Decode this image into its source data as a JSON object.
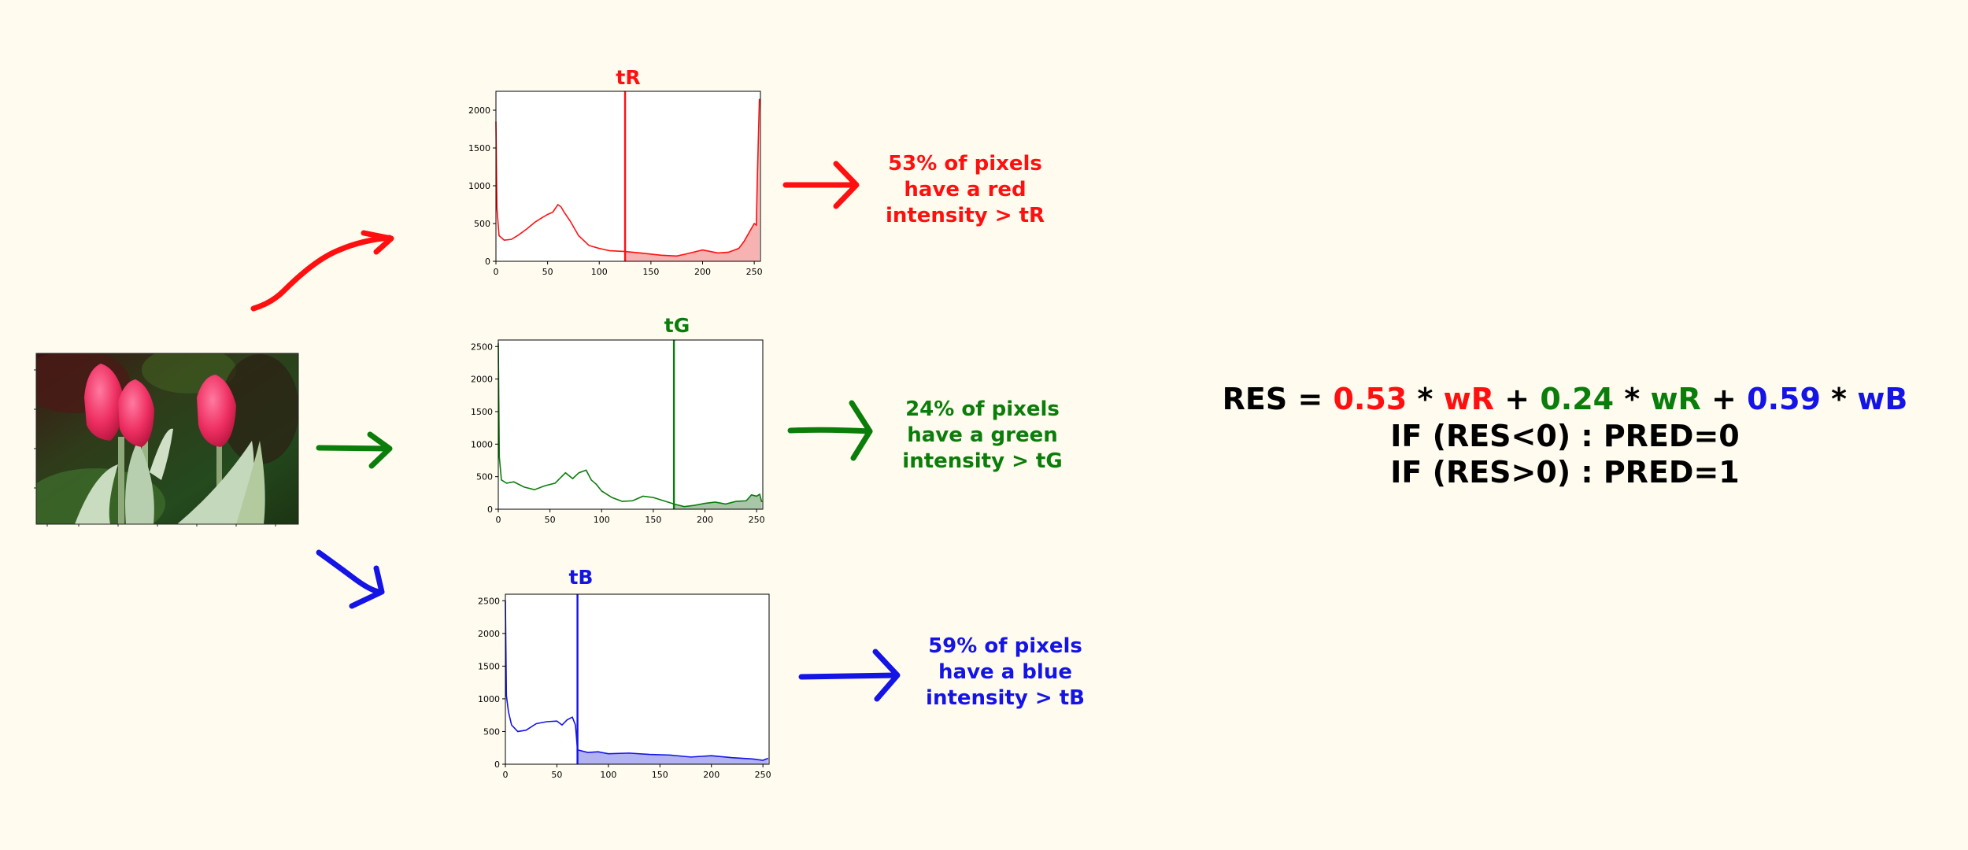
{
  "colors": {
    "background": "#fffbee",
    "red": "#ff1010",
    "green": "#0a7d0a",
    "blue": "#1414e6",
    "black": "#000000"
  },
  "photo": {
    "subject": "two pink tulips on green stems against dark foliage"
  },
  "arrows": [
    "red-curved-arrow",
    "green-arrow",
    "blue-curved-arrow"
  ],
  "histograms": [
    {
      "id": "red",
      "title": "tR",
      "threshold": 125,
      "ylim": [
        0,
        2250
      ],
      "yticks": [
        0,
        500,
        1000,
        1500,
        2000
      ],
      "xticks": [
        0,
        50,
        100,
        150,
        200,
        250
      ],
      "xlim": [
        0,
        256
      ],
      "description": [
        "53% of pixels",
        "have a red",
        "intensity > tR"
      ]
    },
    {
      "id": "green",
      "title": "tG",
      "threshold": 170,
      "ylim": [
        0,
        2600
      ],
      "yticks": [
        0,
        500,
        1000,
        1500,
        2000,
        2500
      ],
      "xticks": [
        0,
        50,
        100,
        150,
        200,
        250
      ],
      "xlim": [
        0,
        256
      ],
      "description": [
        "24% of pixels",
        "have a green",
        "intensity > tG"
      ]
    },
    {
      "id": "blue",
      "title": "tB",
      "threshold": 70,
      "ylim": [
        0,
        2600
      ],
      "yticks": [
        0,
        500,
        1000,
        1500,
        2000,
        2500
      ],
      "xticks": [
        0,
        50,
        100,
        150,
        200,
        250
      ],
      "xlim": [
        0,
        256
      ],
      "description": [
        "59% of pixels",
        "have a blue",
        "intensity > tB"
      ]
    }
  ],
  "chart_data": [
    {
      "type": "area",
      "title": "tR",
      "xlim": [
        0,
        256
      ],
      "ylim": [
        0,
        2250
      ],
      "threshold": 125,
      "x": [
        0,
        1,
        3,
        8,
        15,
        22,
        30,
        38,
        45,
        50,
        55,
        60,
        63,
        66,
        72,
        80,
        90,
        100,
        110,
        125,
        140,
        160,
        175,
        185,
        200,
        215,
        225,
        235,
        240,
        245,
        250,
        252,
        253,
        255
      ],
      "y": [
        1850,
        700,
        340,
        280,
        290,
        350,
        430,
        520,
        580,
        620,
        650,
        750,
        720,
        650,
        530,
        340,
        210,
        170,
        140,
        130,
        110,
        80,
        70,
        100,
        150,
        110,
        120,
        170,
        260,
        380,
        500,
        480,
        1100,
        2150
      ]
    },
    {
      "type": "area",
      "title": "tG",
      "xlim": [
        0,
        256
      ],
      "ylim": [
        0,
        2600
      ],
      "threshold": 170,
      "x": [
        0,
        1,
        3,
        8,
        15,
        25,
        35,
        45,
        55,
        65,
        72,
        78,
        85,
        90,
        95,
        100,
        110,
        120,
        130,
        140,
        150,
        160,
        170,
        180,
        190,
        200,
        210,
        220,
        230,
        240,
        245,
        250,
        253,
        255
      ],
      "y": [
        2550,
        800,
        450,
        400,
        420,
        340,
        300,
        360,
        400,
        560,
        470,
        560,
        600,
        450,
        380,
        280,
        180,
        120,
        130,
        200,
        180,
        130,
        80,
        40,
        60,
        90,
        110,
        80,
        120,
        130,
        220,
        200,
        230,
        110
      ],
      "title_text": "tG"
    },
    {
      "type": "area",
      "title": "tB",
      "xlim": [
        0,
        256
      ],
      "ylim": [
        0,
        2600
      ],
      "threshold": 70,
      "x": [
        0,
        1,
        3,
        6,
        12,
        20,
        30,
        40,
        50,
        55,
        60,
        65,
        68,
        70,
        80,
        90,
        100,
        120,
        140,
        160,
        180,
        200,
        220,
        240,
        250,
        255
      ],
      "y": [
        2500,
        1050,
        800,
        600,
        500,
        520,
        620,
        650,
        660,
        600,
        680,
        720,
        600,
        220,
        180,
        190,
        160,
        170,
        150,
        140,
        110,
        130,
        100,
        80,
        60,
        90
      ]
    }
  ],
  "formula": {
    "line1": [
      {
        "text": "RES = ",
        "color": "#000000"
      },
      {
        "text": "0.53",
        "color": "#ff1010"
      },
      {
        "text": " * ",
        "color": "#000000"
      },
      {
        "text": "wR",
        "color": "#ff1010"
      },
      {
        "text": " + ",
        "color": "#000000"
      },
      {
        "text": "0.24",
        "color": "#0a7d0a"
      },
      {
        "text": " * ",
        "color": "#000000"
      },
      {
        "text": "wR",
        "color": "#0a7d0a"
      },
      {
        "text": " + ",
        "color": "#000000"
      },
      {
        "text": "0.59",
        "color": "#1414e6"
      },
      {
        "text": " * ",
        "color": "#000000"
      },
      {
        "text": "wB",
        "color": "#1414e6"
      }
    ],
    "line2": "IF (RES<0) : PRED=0",
    "line3": "IF (RES>0) : PRED=1"
  }
}
